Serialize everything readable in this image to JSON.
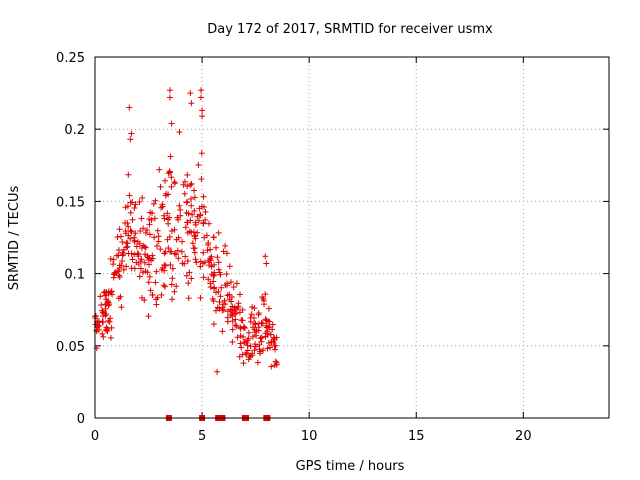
{
  "chart_data": {
    "type": "scatter",
    "title": "Day 172 of 2017, SRMTID for receiver usmx",
    "xlabel": "GPS time / hours",
    "ylabel": "SRMTID / TECUs",
    "xlim": [
      0,
      24
    ],
    "ylim": [
      0,
      0.25
    ],
    "x_ticks": [
      "0",
      "5",
      "10",
      "15",
      "20"
    ],
    "y_ticks": [
      "0",
      "0.05",
      "0.1",
      "0.15",
      "0.2",
      "0.25"
    ],
    "grid": true,
    "marker": "+",
    "color": "#e00000",
    "zero_markers_x": [
      3.45,
      5.0,
      5.75,
      5.95,
      7.0,
      7.05,
      8.0,
      8.05
    ],
    "envelope_hours": [
      0,
      0.5,
      1.0,
      1.5,
      2.0,
      2.5,
      3.0,
      3.5,
      4.0,
      4.5,
      5.0,
      5.5,
      6.0,
      6.5,
      7.0,
      7.5,
      8.0,
      8.5
    ],
    "envelope_low": [
      0.035,
      0.04,
      0.06,
      0.07,
      0.07,
      0.06,
      0.055,
      0.06,
      0.07,
      0.08,
      0.06,
      0.035,
      0.04,
      0.035,
      0.03,
      0.02,
      0.02,
      0.02
    ],
    "envelope_high": [
      0.085,
      0.1,
      0.14,
      0.19,
      0.175,
      0.16,
      0.17,
      0.215,
      0.205,
      0.19,
      0.21,
      0.15,
      0.145,
      0.105,
      0.08,
      0.1,
      0.11,
      0.07
    ],
    "points_per_bin": 30,
    "outliers": [
      {
        "x": 1.6,
        "y": 0.215
      },
      {
        "x": 1.7,
        "y": 0.197
      },
      {
        "x": 1.65,
        "y": 0.193
      },
      {
        "x": 3.5,
        "y": 0.227
      },
      {
        "x": 3.5,
        "y": 0.222
      },
      {
        "x": 4.45,
        "y": 0.225
      },
      {
        "x": 4.5,
        "y": 0.218
      },
      {
        "x": 4.95,
        "y": 0.227
      },
      {
        "x": 4.95,
        "y": 0.222
      },
      {
        "x": 5.0,
        "y": 0.213
      },
      {
        "x": 5.0,
        "y": 0.209
      },
      {
        "x": 3.0,
        "y": 0.172
      },
      {
        "x": 5.7,
        "y": 0.032
      },
      {
        "x": 7.95,
        "y": 0.112
      },
      {
        "x": 8.0,
        "y": 0.107
      }
    ]
  }
}
